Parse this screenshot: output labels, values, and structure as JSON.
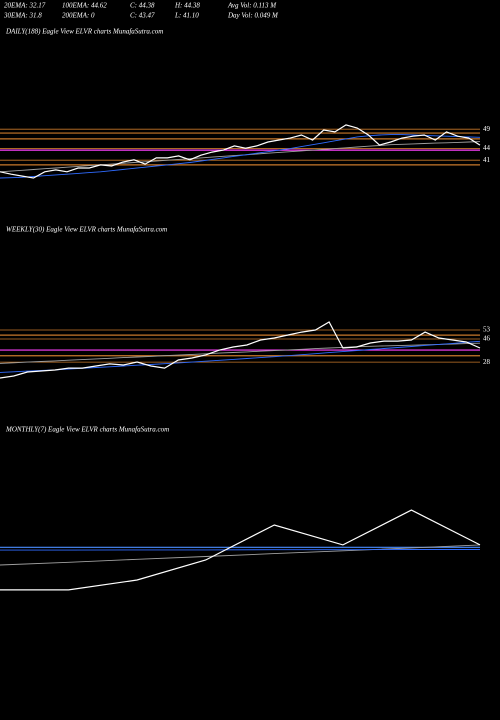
{
  "header": {
    "row1": [
      "20EMA: 32.17",
      "100EMA: 44.62",
      "C: 44.38",
      "H: 44.38",
      "Avg Vol: 0.113 M"
    ],
    "row2": [
      "30EMA: 31.8",
      "200EMA: 0",
      "C: 43.47",
      "L: 41.10",
      "Day Vol: 0.049 M"
    ]
  },
  "chart_data": [
    {
      "type": "line",
      "title": "DAILY(188) Eagle  View  ELVR charts MunafaSutra.com",
      "categories": [
        null,
        null,
        null,
        null,
        null,
        null,
        null,
        null,
        null,
        null,
        null,
        null,
        null,
        null,
        null,
        null,
        null,
        null,
        null,
        null,
        null,
        null,
        null,
        null,
        null,
        null,
        null,
        null,
        null,
        null,
        null,
        null,
        null,
        null,
        null,
        null,
        null,
        null,
        null,
        null,
        null,
        null,
        null,
        null
      ],
      "series": [
        {
          "color": "#a0a0a0",
          "values": [
            38.0,
            38.2,
            38.4,
            38.6,
            38.8,
            39.0,
            39.2,
            39.4,
            39.6,
            39.8,
            40.0,
            40.2,
            40.4,
            40.6,
            40.8,
            41.0,
            41.2,
            41.4,
            41.6,
            41.8,
            42.0,
            42.2,
            42.4,
            42.6,
            42.8,
            43.0,
            43.2,
            43.4,
            43.6,
            43.8,
            44.0,
            44.2,
            44.4,
            44.6,
            44.8,
            45.0,
            45.1,
            45.2,
            45.3,
            45.4,
            45.5,
            45.6,
            45.7,
            45.8
          ]
        },
        {
          "color": "#2f6bff",
          "values": [
            36.4,
            36.5,
            36.6,
            36.8,
            37.0,
            37.2,
            37.4,
            37.6,
            37.8,
            38.0,
            38.3,
            38.6,
            38.9,
            39.2,
            39.5,
            39.8,
            40.1,
            40.4,
            40.8,
            41.2,
            41.6,
            42.0,
            42.4,
            42.8,
            43.2,
            43.6,
            44.0,
            44.5,
            45.0,
            45.5,
            46.0,
            46.5,
            47.0,
            47.3,
            47.5,
            47.6,
            47.6,
            47.5,
            47.4,
            47.3,
            47.2,
            47.1,
            47.0,
            46.9
          ]
        },
        {
          "color": "#ffffff",
          "values": [
            38.0,
            37.4,
            36.9,
            36.4,
            38.0,
            38.5,
            38.0,
            39.0,
            39.0,
            39.8,
            39.5,
            40.5,
            41.1,
            40.0,
            41.6,
            41.6,
            42.1,
            41.1,
            42.3,
            43.1,
            43.6,
            44.7,
            44.1,
            44.7,
            45.7,
            46.2,
            46.7,
            47.5,
            46.2,
            48.8,
            48.3,
            50.1,
            49.3,
            47.5,
            44.9,
            45.7,
            46.7,
            47.2,
            47.5,
            46.2,
            48.3,
            47.2,
            46.7,
            44.9
          ]
        }
      ],
      "reference_lines": [
        {
          "value": 48.0,
          "color": "#c8782a"
        },
        {
          "value": 46.5,
          "color": "#c8782a"
        },
        {
          "value": 43.6,
          "color": "#ff40ff"
        },
        {
          "value": 39.8,
          "color": "#c8782a"
        }
      ],
      "ylim": [
        23,
        72
      ],
      "yticks": [
        49,
        44,
        41
      ],
      "tick_color": "#c8782a"
    },
    {
      "type": "line",
      "title": "WEEKLY(30) Eagle  View  ELVR charts MunafaSutra.com",
      "categories": [
        null,
        null,
        null,
        null,
        null,
        null,
        null,
        null,
        null,
        null,
        null,
        null,
        null,
        null,
        null,
        null,
        null,
        null,
        null,
        null,
        null,
        null,
        null,
        null,
        null,
        null,
        null,
        null,
        null,
        null,
        null,
        null,
        null,
        null,
        null,
        null
      ],
      "series": [
        {
          "color": "#a0a0a0",
          "values": [
            27.0,
            27.5,
            28.0,
            28.5,
            29.0,
            29.5,
            30.0,
            30.5,
            31.0,
            31.5,
            32.0,
            32.5,
            33.0,
            33.5,
            34.0,
            34.5,
            35.0,
            35.5,
            36.0,
            36.5,
            37.0,
            37.5,
            38.0,
            38.5,
            39.0,
            39.5,
            40.0,
            40.3,
            40.6,
            40.9,
            41.2,
            41.5,
            41.8,
            42.1,
            42.4,
            42.7
          ]
        },
        {
          "color": "#2f6bff",
          "values": [
            20.0,
            20.5,
            21.0,
            21.5,
            22.0,
            22.6,
            23.2,
            23.8,
            24.4,
            25.0,
            25.6,
            26.2,
            26.8,
            27.4,
            28.0,
            28.7,
            29.4,
            30.1,
            30.8,
            31.5,
            32.2,
            33.0,
            33.8,
            34.6,
            35.4,
            36.2,
            37.0,
            37.8,
            38.6,
            39.4,
            40.2,
            41.0,
            41.8,
            42.6,
            43.4,
            44.2
          ]
        },
        {
          "color": "#ffffff",
          "values": [
            15.7,
            17.2,
            20.3,
            21.1,
            21.9,
            23.4,
            23.4,
            25.0,
            26.6,
            25.8,
            28.1,
            25.0,
            23.4,
            29.7,
            31.2,
            33.6,
            37.4,
            39.8,
            41.3,
            45.2,
            46.8,
            49.1,
            51.4,
            53.0,
            59.2,
            39.0,
            39.8,
            42.9,
            44.4,
            44.4,
            45.2,
            51.4,
            46.8,
            45.2,
            43.7,
            39.0
          ]
        }
      ],
      "reference_lines": [
        {
          "value": 49.0,
          "color": "#c8782a"
        },
        {
          "value": 37.4,
          "color": "#ff40ff"
        },
        {
          "value": 33.0,
          "color": "#c8782a"
        }
      ],
      "ylim": [
        -17,
        123
      ],
      "yticks": [
        53,
        46,
        28
      ],
      "tick_color": "#c8782a"
    },
    {
      "type": "line",
      "title": "MONTHLY(7) Eagle  View  ELVR charts MunafaSutra.com",
      "categories": [
        null,
        null,
        null,
        null,
        null,
        null,
        null,
        null
      ],
      "series": [
        {
          "color": "#a0a0a0",
          "values": [
            29.2,
            30.7,
            32.3,
            33.8,
            35.4,
            36.9,
            38.5,
            40.1
          ]
        },
        {
          "color": "#2f6bff",
          "values": [
            37.3,
            37.3,
            37.4,
            37.4,
            37.5,
            37.5,
            37.6,
            37.6
          ]
        },
        {
          "color": "#ffffff",
          "values": [
            15.7,
            15.7,
            21.1,
            31.9,
            50.9,
            40.1,
            59.0,
            40.1
          ]
        }
      ],
      "reference_lines": [
        {
          "value": 38.8,
          "color": "#4a8bff"
        }
      ],
      "ylim": [
        -44,
        97
      ]
    }
  ]
}
